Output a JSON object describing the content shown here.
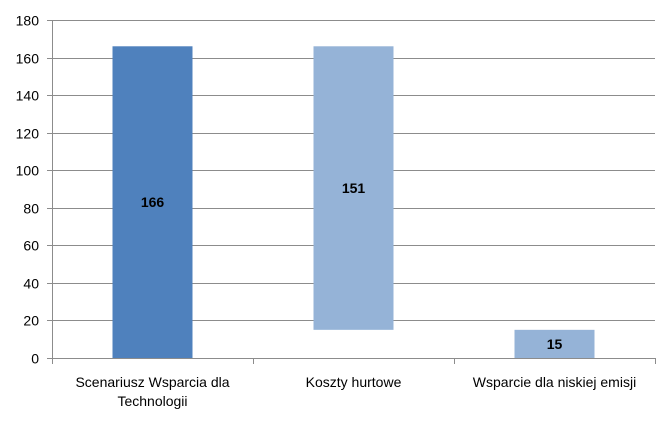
{
  "chart_data": {
    "type": "bar",
    "subtype": "waterfall",
    "categories": [
      [
        "Scenariusz Wsparcia dla",
        "Technologii"
      ],
      [
        "Koszty hurtowe"
      ],
      [
        "Wsparcie dla niskiej emisji"
      ]
    ],
    "bars": [
      {
        "base": 0,
        "value": 166,
        "label": "166",
        "color": "#4f81bd"
      },
      {
        "base": 15,
        "value": 151,
        "label": "151",
        "color": "#95b3d7"
      },
      {
        "base": 0,
        "value": 15,
        "label": "15",
        "color": "#95b3d7"
      }
    ],
    "ylim": [
      0,
      180
    ],
    "yticks": [
      0,
      20,
      40,
      60,
      80,
      100,
      120,
      140,
      160,
      180
    ],
    "grid": true,
    "legend": "none",
    "title": "",
    "xlabel": "",
    "ylabel": ""
  }
}
